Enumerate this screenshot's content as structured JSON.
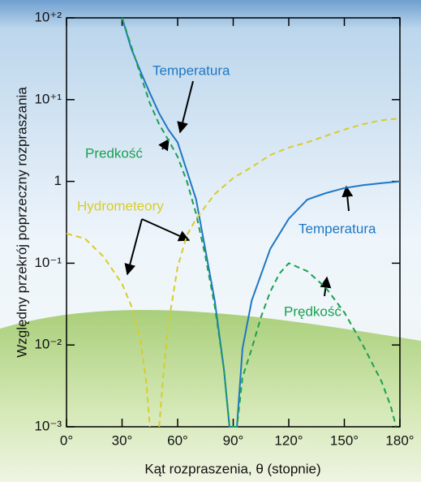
{
  "chart_data": {
    "type": "line",
    "y_label": "Względny przekrój poprzeczny rozpraszania",
    "x_label": "Kąt rozpraszenia, θ (stopnie)",
    "log_y": true,
    "grid": false,
    "xlim": [
      0,
      180
    ],
    "xticks": [
      {
        "value": 0,
        "label": "0°"
      },
      {
        "value": 30,
        "label": "30°"
      },
      {
        "value": 60,
        "label": "60°"
      },
      {
        "value": 90,
        "label": "90°"
      },
      {
        "value": 120,
        "label": "120°"
      },
      {
        "value": 150,
        "label": "150°"
      },
      {
        "value": 180,
        "label": "180°"
      }
    ],
    "ylim": [
      0.001,
      100
    ],
    "yticks": [
      {
        "value": 100,
        "label": "10⁺²"
      },
      {
        "value": 10,
        "label": "10⁺¹"
      },
      1,
      {
        "value": 0.1,
        "label": "10⁻¹"
      },
      {
        "value": 0.01,
        "label": "10⁻²"
      },
      {
        "value": 0.001,
        "label": "10⁻³"
      }
    ],
    "series": [
      {
        "name": "Temperatura",
        "color": "#1f77c4",
        "dash": false,
        "x": [
          30,
          35,
          40,
          45,
          50,
          55,
          60,
          70,
          80,
          85,
          88,
          90,
          92,
          95,
          100,
          110,
          120,
          130,
          140,
          150,
          160,
          170,
          180
        ],
        "values": [
          100,
          42,
          22,
          12,
          6.8,
          4.3,
          3,
          0.6,
          0.035,
          0.005,
          0.001,
          0.001,
          0.001,
          0.009,
          0.035,
          0.15,
          0.35,
          0.6,
          0.72,
          0.83,
          0.9,
          0.95,
          1
        ]
      },
      {
        "name": "Prędkość",
        "color": "#1aa050",
        "dash": true,
        "x": [
          30,
          40,
          45,
          50,
          55,
          60,
          65,
          70,
          75,
          80,
          85,
          88,
          90,
          92,
          95,
          100,
          105,
          110,
          115,
          120,
          130,
          140,
          150,
          160,
          170,
          175,
          178
        ],
        "values": [
          100,
          20,
          9,
          5,
          3.2,
          2,
          1,
          0.4,
          0.12,
          0.03,
          0.005,
          0.001,
          0.001,
          0.001,
          0.004,
          0.009,
          0.022,
          0.045,
          0.075,
          0.1,
          0.08,
          0.05,
          0.025,
          0.01,
          0.0036,
          0.0018,
          0.001
        ]
      },
      {
        "name": "Hydrometeory",
        "color": "#d8cc2a",
        "dash": true,
        "x": [
          0,
          10,
          20,
          30,
          35,
          40,
          43,
          45,
          47,
          50,
          52,
          55,
          60,
          65,
          70,
          80,
          90,
          100,
          110,
          120,
          130,
          140,
          150,
          160,
          170,
          180
        ],
        "values": [
          0.23,
          0.2,
          0.12,
          0.056,
          0.03,
          0.011,
          0.0036,
          0.001,
          null,
          0.001,
          0.0036,
          0.018,
          0.09,
          0.22,
          0.35,
          0.7,
          1.1,
          1.5,
          2.1,
          2.6,
          3,
          3.6,
          4.3,
          5,
          5.6,
          5.9
        ]
      }
    ],
    "annotations": [
      "Temperatura",
      "Predkość",
      "Hydrometeory",
      "Temperatura",
      "Prędkość"
    ]
  }
}
